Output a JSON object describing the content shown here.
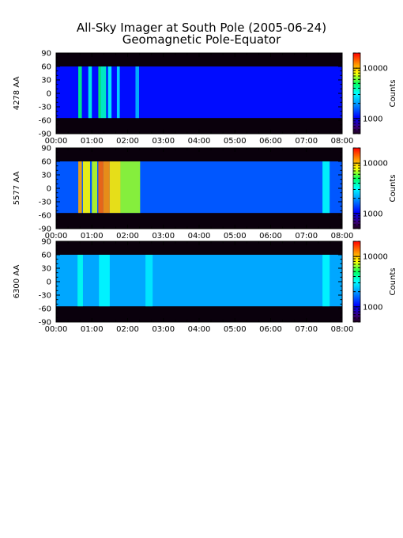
{
  "chart_data": {
    "type": "heatmap",
    "title": "All-Sky Imager at South Pole (2005-06-24)",
    "subtitle": "Geomagnetic Pole-Equator",
    "x_ticks": [
      "00:00",
      "01:00",
      "02:00",
      "03:00",
      "04:00",
      "05:00",
      "06:00",
      "07:00",
      "08:00"
    ],
    "x_range_hours": [
      0,
      8
    ],
    "y_ticks": [
      "90",
      "60",
      "30",
      "0",
      "-30",
      "-60",
      "-90"
    ],
    "y_range": [
      -90,
      90
    ],
    "data_lat_range": [
      -55,
      60
    ],
    "colorbar_scale": "log",
    "colorbar_range": [
      500,
      20000
    ],
    "colorbar_ticks": [
      "10000",
      "1000"
    ],
    "colorbar_label": "Counts",
    "panels": [
      {
        "ylabel": "4278 AA",
        "background_counts": 1100,
        "bright_segments": [
          {
            "start": 0.62,
            "end": 0.72,
            "counts": 4500
          },
          {
            "start": 0.9,
            "end": 1.0,
            "counts": 3500
          },
          {
            "start": 1.18,
            "end": 1.25,
            "counts": 5000
          },
          {
            "start": 1.25,
            "end": 1.4,
            "counts": 3800
          },
          {
            "start": 1.45,
            "end": 1.55,
            "counts": 3200
          },
          {
            "start": 1.7,
            "end": 1.78,
            "counts": 2800
          },
          {
            "start": 2.22,
            "end": 2.32,
            "counts": 2300
          }
        ]
      },
      {
        "ylabel": "5577 AA",
        "background_counts": 1500,
        "bright_segments": [
          {
            "start": 0.62,
            "end": 0.72,
            "counts": 11000
          },
          {
            "start": 0.75,
            "end": 0.95,
            "counts": 8000
          },
          {
            "start": 1.0,
            "end": 1.15,
            "counts": 7000
          },
          {
            "start": 1.18,
            "end": 1.32,
            "counts": 14000
          },
          {
            "start": 1.32,
            "end": 1.5,
            "counts": 12000
          },
          {
            "start": 1.5,
            "end": 1.8,
            "counts": 8500
          },
          {
            "start": 1.8,
            "end": 2.35,
            "counts": 6500
          },
          {
            "start": 7.45,
            "end": 7.65,
            "counts": 3200
          }
        ]
      },
      {
        "ylabel": "6300 AA",
        "background_counts": 2100,
        "bright_segments": [
          {
            "start": 0.6,
            "end": 0.75,
            "counts": 3300
          },
          {
            "start": 1.2,
            "end": 1.5,
            "counts": 3100
          },
          {
            "start": 2.5,
            "end": 2.7,
            "counts": 2900
          },
          {
            "start": 7.45,
            "end": 7.65,
            "counts": 3100
          }
        ]
      }
    ]
  }
}
